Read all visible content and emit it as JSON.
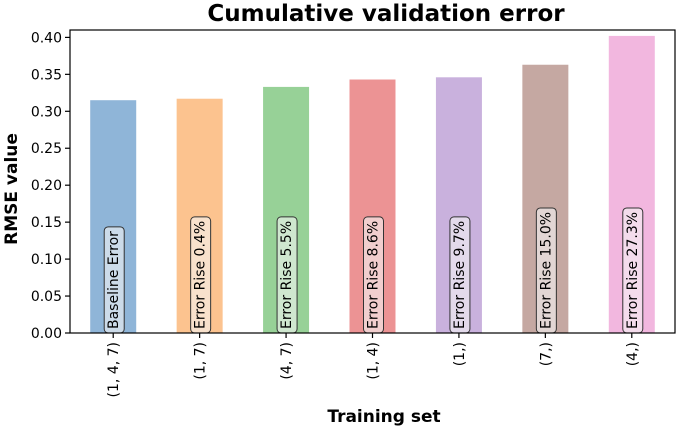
{
  "chart_data": {
    "type": "bar",
    "title": "Cumulative validation error",
    "xlabel": "Training set",
    "ylabel": "RMSE value",
    "ylim": [
      0,
      0.41
    ],
    "yticks": [
      "0.00",
      "0.05",
      "0.10",
      "0.15",
      "0.20",
      "0.25",
      "0.30",
      "0.35",
      "0.40"
    ],
    "grid": false,
    "categories": [
      "(1, 4, 7)",
      "(1, 7)",
      "(4, 7)",
      "(1, 4)",
      "(1,)",
      "(7,)",
      "(4,)"
    ],
    "values": [
      0.315,
      0.317,
      0.333,
      0.343,
      0.346,
      0.363,
      0.402
    ],
    "bar_labels": [
      "Baseline Error",
      "Error Rise 0.4%",
      "Error Rise 5.5%",
      "Error Rise 8.6%",
      "Error Rise 9.7%",
      "Error Rise 15.0%",
      "Error Rise 27.3%"
    ],
    "colors": [
      "#8fb5d8",
      "#fcc38f",
      "#97d197",
      "#ec9394",
      "#c9b1dd",
      "#c5a8a2",
      "#f2b7df"
    ]
  }
}
